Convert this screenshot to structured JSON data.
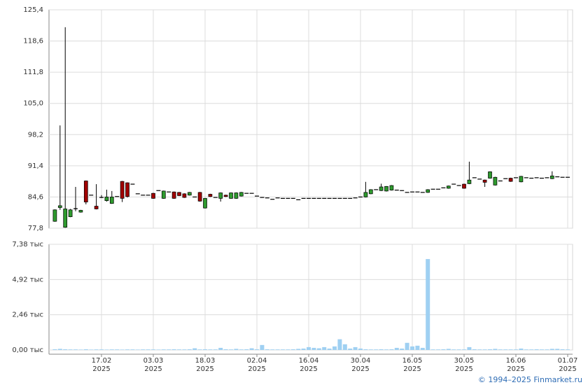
{
  "credit": "© 1994–2025 Finmarket.ru",
  "chart_data": [
    {
      "type": "candlestick",
      "categories": [
        null,
        null,
        null,
        null,
        null,
        null,
        null,
        null,
        null,
        null,
        [
          "17.02",
          "2025"
        ],
        null,
        null,
        null,
        null,
        null,
        null,
        null,
        null,
        null,
        [
          "03.03",
          "2025"
        ],
        null,
        null,
        null,
        null,
        null,
        null,
        null,
        null,
        null,
        [
          "18.03",
          "2025"
        ],
        null,
        null,
        null,
        null,
        null,
        null,
        null,
        null,
        null,
        [
          "02.04",
          "2025"
        ],
        null,
        null,
        null,
        null,
        null,
        null,
        null,
        null,
        null,
        [
          "16.04",
          "2025"
        ],
        null,
        null,
        null,
        null,
        null,
        null,
        null,
        null,
        null,
        [
          "30.04",
          "2025"
        ],
        null,
        null,
        null,
        null,
        null,
        null,
        null,
        null,
        null,
        [
          "16.05",
          "2025"
        ],
        null,
        null,
        null,
        null,
        null,
        null,
        null,
        null,
        null,
        [
          "30.05",
          "2025"
        ],
        null,
        null,
        null,
        null,
        null,
        null,
        null,
        null,
        null,
        [
          "16.06",
          "2025"
        ],
        null,
        null,
        null,
        null,
        null,
        null,
        null,
        null,
        null,
        [
          "01.07",
          "2025"
        ]
      ],
      "open": [
        null,
        79.3,
        82.3,
        78.0,
        80.3,
        82.0,
        81.3,
        88.1,
        85.0,
        82.6,
        84.5,
        83.8,
        83.2,
        84.7,
        88.0,
        87.7,
        87.4,
        85.3,
        85.0,
        85.0,
        85.4,
        86.0,
        84.3,
        85.7,
        85.7,
        85.6,
        85.3,
        85.0,
        84.6,
        85.6,
        82.2,
        85.2,
        84.5,
        84.3,
        85.0,
        84.3,
        84.3,
        84.8,
        85.4,
        85.4,
        84.8,
        84.5,
        84.4,
        84.1,
        84.4,
        84.3,
        84.3,
        84.3,
        84.0,
        84.3,
        84.3,
        84.3,
        84.3,
        84.3,
        84.3,
        84.3,
        84.3,
        84.3,
        84.3,
        84.4,
        84.6,
        84.6,
        85.3,
        86.2,
        86.0,
        85.9,
        86.1,
        86.1,
        86.0,
        85.6,
        85.7,
        85.7,
        85.6,
        85.6,
        86.3,
        86.3,
        86.6,
        86.5,
        87.4,
        87.1,
        87.4,
        87.5,
        88.8,
        88.5,
        88.3,
        88.7,
        87.2,
        88.1,
        88.6,
        88.7,
        88.8,
        87.9,
        88.8,
        88.7,
        88.8,
        88.7,
        88.8,
        88.6,
        89.0,
        88.9,
        88.9
      ],
      "high": [
        null,
        81.9,
        100.2,
        121.6,
        82.0,
        86.8,
        81.8,
        88.2,
        85.0,
        87.4,
        85.0,
        86.2,
        85.9,
        84.7,
        88.1,
        87.8,
        87.4,
        85.3,
        85.0,
        85.0,
        85.5,
        86.0,
        86.0,
        85.7,
        85.8,
        85.7,
        85.4,
        85.7,
        84.6,
        85.7,
        84.4,
        85.3,
        84.5,
        85.6,
        85.1,
        85.6,
        85.6,
        85.7,
        85.4,
        85.4,
        84.8,
        84.5,
        84.4,
        84.1,
        84.4,
        84.3,
        84.3,
        84.3,
        84.0,
        84.3,
        84.3,
        84.3,
        84.3,
        84.3,
        84.3,
        84.3,
        84.3,
        84.3,
        84.3,
        84.4,
        84.6,
        87.9,
        86.3,
        86.2,
        87.5,
        87.0,
        87.2,
        86.1,
        86.0,
        85.6,
        85.7,
        85.7,
        85.6,
        86.3,
        86.3,
        86.3,
        86.6,
        87.1,
        87.4,
        87.1,
        87.5,
        92.3,
        88.8,
        88.5,
        88.4,
        90.2,
        89.0,
        88.1,
        88.6,
        88.8,
        88.8,
        89.2,
        88.8,
        88.7,
        88.8,
        88.7,
        88.8,
        90.2,
        89.0,
        88.9,
        88.9
      ],
      "low": [
        null,
        79.2,
        81.8,
        77.9,
        80.2,
        81.5,
        81.2,
        83.0,
        85.0,
        81.9,
        84.4,
        83.6,
        83.1,
        84.7,
        83.5,
        84.5,
        87.4,
        85.3,
        85.0,
        85.0,
        84.2,
        86.0,
        84.2,
        85.7,
        84.2,
        84.8,
        84.4,
        84.9,
        84.6,
        83.6,
        82.1,
        84.6,
        84.5,
        83.6,
        84.6,
        84.2,
        84.2,
        84.7,
        85.4,
        85.4,
        84.8,
        84.5,
        84.4,
        84.1,
        84.4,
        84.3,
        84.3,
        84.3,
        84.0,
        84.3,
        84.3,
        84.3,
        84.3,
        84.3,
        84.3,
        84.3,
        84.3,
        84.3,
        84.3,
        84.4,
        84.6,
        84.5,
        85.2,
        86.2,
        85.9,
        85.8,
        86.0,
        86.1,
        86.0,
        85.6,
        85.7,
        85.7,
        85.6,
        85.5,
        86.3,
        86.3,
        86.6,
        86.4,
        87.4,
        87.1,
        86.4,
        87.4,
        88.8,
        88.5,
        86.8,
        88.6,
        87.1,
        88.1,
        88.6,
        87.9,
        88.8,
        87.8,
        88.8,
        88.7,
        88.8,
        88.7,
        88.8,
        88.5,
        89.0,
        88.9,
        88.9
      ],
      "close": [
        null,
        81.8,
        82.7,
        82.0,
        81.8,
        82.1,
        81.7,
        83.5,
        85.0,
        82.0,
        84.5,
        84.6,
        84.6,
        84.7,
        84.3,
        84.7,
        87.4,
        85.3,
        85.0,
        85.0,
        84.3,
        86.0,
        85.9,
        85.7,
        84.3,
        84.9,
        84.5,
        85.6,
        84.6,
        83.7,
        84.3,
        84.7,
        84.5,
        85.5,
        84.7,
        85.5,
        85.5,
        85.6,
        85.4,
        85.4,
        84.8,
        84.5,
        84.4,
        84.1,
        84.4,
        84.3,
        84.3,
        84.3,
        84.0,
        84.3,
        84.3,
        84.3,
        84.3,
        84.3,
        84.3,
        84.3,
        84.3,
        84.3,
        84.3,
        84.4,
        84.6,
        85.6,
        86.2,
        86.2,
        86.8,
        86.9,
        87.1,
        86.1,
        86.0,
        85.6,
        85.7,
        85.7,
        85.6,
        86.2,
        86.3,
        86.3,
        86.6,
        87.0,
        87.4,
        87.1,
        86.5,
        88.3,
        88.8,
        88.5,
        87.8,
        90.1,
        88.9,
        88.1,
        88.6,
        88.0,
        88.8,
        89.1,
        88.8,
        88.7,
        88.8,
        88.7,
        88.8,
        89.2,
        89.0,
        88.9,
        88.9
      ],
      "color_up": "#2e9a2e",
      "color_down": "#a00000",
      "ylim": [
        77.8,
        125.4
      ],
      "yticks": [
        {
          "value": 77.8,
          "label": "77,8"
        },
        {
          "value": 84.6,
          "label": "84,6"
        },
        {
          "value": 91.4,
          "label": "91,4"
        },
        {
          "value": 98.2,
          "label": "98,2"
        },
        {
          "value": 105.0,
          "label": "105,0"
        },
        {
          "value": 111.8,
          "label": "111,8"
        },
        {
          "value": 118.6,
          "label": "118,6"
        },
        {
          "value": 125.4,
          "label": "125,4"
        }
      ],
      "grid": true
    },
    {
      "type": "bar",
      "values": [
        null,
        0.05,
        0.08,
        0.05,
        0.04,
        0.04,
        0.03,
        0.05,
        0.03,
        0.04,
        0.04,
        0.03,
        0.04,
        0.04,
        0.03,
        0.04,
        0.04,
        0.03,
        0.04,
        0.04,
        0.04,
        0.03,
        0.04,
        0.04,
        0.05,
        0.04,
        0.04,
        0.05,
        0.12,
        0.04,
        0.05,
        0.04,
        0.04,
        0.15,
        0.05,
        0.04,
        0.08,
        0.04,
        0.05,
        0.12,
        0.05,
        0.35,
        0.05,
        0.04,
        0.04,
        0.04,
        0.04,
        0.05,
        0.08,
        0.1,
        0.2,
        0.15,
        0.12,
        0.2,
        0.1,
        0.25,
        0.75,
        0.4,
        0.1,
        0.2,
        0.1,
        0.05,
        0.04,
        0.04,
        0.05,
        0.04,
        0.05,
        0.15,
        0.1,
        0.5,
        0.25,
        0.3,
        0.15,
        6.35,
        0.04,
        0.04,
        0.05,
        0.08,
        0.04,
        0.04,
        0.04,
        0.2,
        0.05,
        0.04,
        0.04,
        0.05,
        0.08,
        0.04,
        0.04,
        0.04,
        0.04,
        0.1,
        0.04,
        0.04,
        0.05,
        0.04,
        0.04,
        0.08,
        0.08,
        0.05,
        0.04
      ],
      "color": "#9fd0f2",
      "ylim": [
        0,
        7.38
      ],
      "yticks": [
        {
          "value": 0,
          "label": "0,00 тыс"
        },
        {
          "value": 2.46,
          "label": "2,46 тыс"
        },
        {
          "value": 4.92,
          "label": "4,92 тыс"
        },
        {
          "value": 7.38,
          "label": "7,38 тыс"
        }
      ],
      "grid": true
    }
  ]
}
